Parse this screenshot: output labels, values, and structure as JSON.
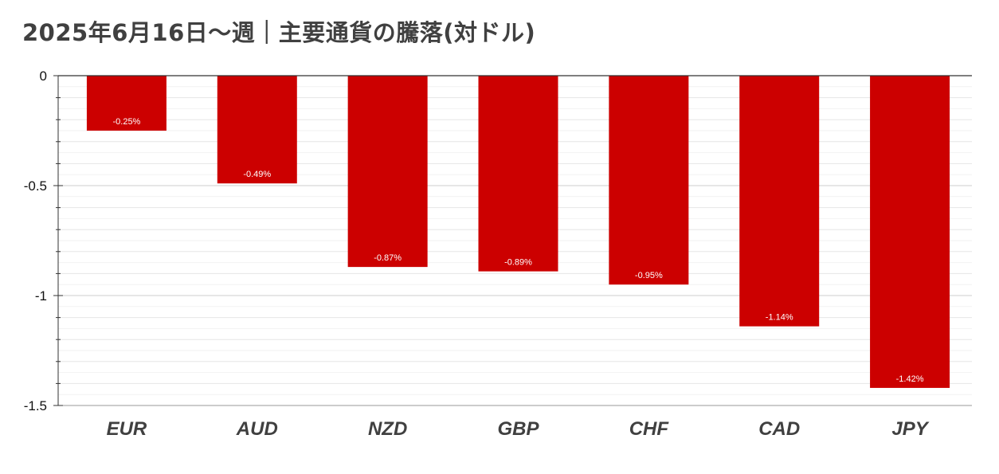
{
  "chart_data": {
    "type": "bar",
    "title": "2025年6月16日〜週｜主要通貨の騰落(対ドル)",
    "xlabel": "",
    "ylabel": "",
    "categories": [
      "EUR",
      "AUD",
      "NZD",
      "GBP",
      "CHF",
      "CAD",
      "JPY"
    ],
    "values": [
      -0.25,
      -0.49,
      -0.87,
      -0.89,
      -0.95,
      -1.14,
      -1.42
    ],
    "data_labels": [
      "-0.25%",
      "-0.49%",
      "-0.87%",
      "-0.89%",
      "-0.95%",
      "-1.14%",
      "-1.42%"
    ],
    "ylim": [
      -1.5,
      0
    ],
    "y_ticks": [
      0,
      -0.5,
      -1,
      -1.5
    ],
    "y_tick_labels": [
      "0",
      "-0.5",
      "-1",
      "-1.5"
    ],
    "grid": true,
    "legend": "none",
    "bar_color": "#cc0000",
    "grid_color": "#e6e6e6",
    "axis_color": "#333333"
  }
}
